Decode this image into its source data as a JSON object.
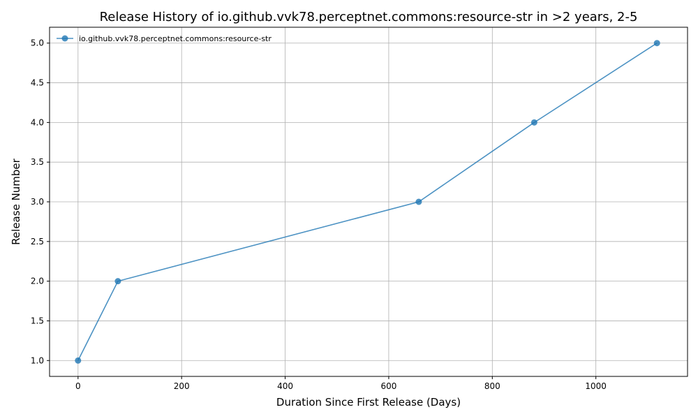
{
  "chart_data": {
    "type": "line",
    "title": "Release History of io.github.vvk78.perceptnet.commons:resource-str in >2 years, 2-5",
    "xlabel": "Duration Since First Release (Days)",
    "ylabel": "Release Number",
    "xlim": [
      -55,
      1177
    ],
    "ylim": [
      0.8,
      5.2
    ],
    "xticks": [
      0,
      200,
      400,
      600,
      800,
      1000
    ],
    "yticks": [
      1.0,
      1.5,
      2.0,
      2.5,
      3.0,
      3.5,
      4.0,
      4.5,
      5.0
    ],
    "xtick_labels": [
      "0",
      "200",
      "400",
      "600",
      "800",
      "1000"
    ],
    "ytick_labels": [
      "1.0",
      "1.5",
      "2.0",
      "2.5",
      "3.0",
      "3.5",
      "4.0",
      "4.5",
      "5.0"
    ],
    "grid": true,
    "legend_position": "top-left",
    "series": [
      {
        "name": "io.github.vvk78.perceptnet.commons:resource-str",
        "color": "#1f77b4",
        "x": [
          0,
          77,
          658,
          881,
          1118
        ],
        "y": [
          1,
          2,
          3,
          4,
          5
        ]
      }
    ]
  }
}
